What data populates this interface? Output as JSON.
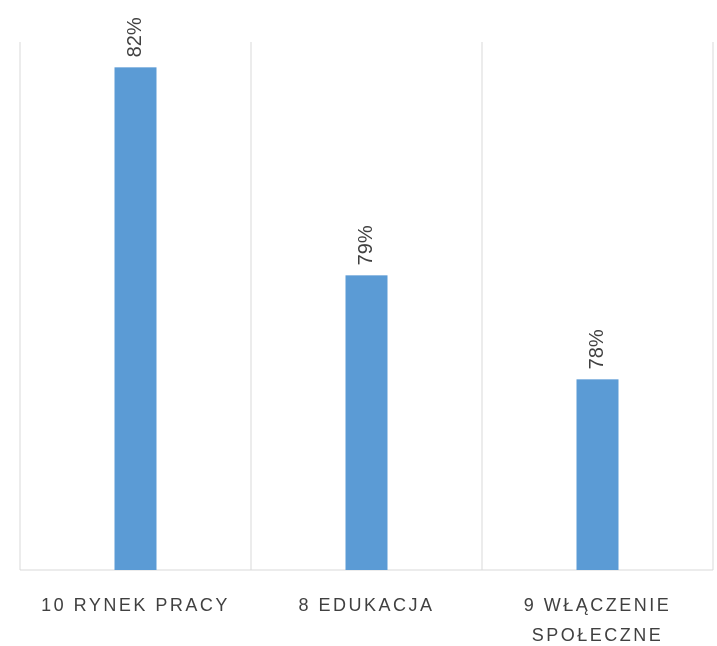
{
  "chart_data": {
    "type": "bar",
    "categories": [
      "10 RYNEK PRACY",
      "8 EDUKACJA",
      "9 WŁĄCZENIE SPOŁECZNE"
    ],
    "values": [
      81.8,
      79.4,
      78.2
    ],
    "value_labels": [
      "82%",
      "79%",
      "78%"
    ],
    "color": "#5b9bd5",
    "ylim": [
      76,
      82
    ]
  }
}
